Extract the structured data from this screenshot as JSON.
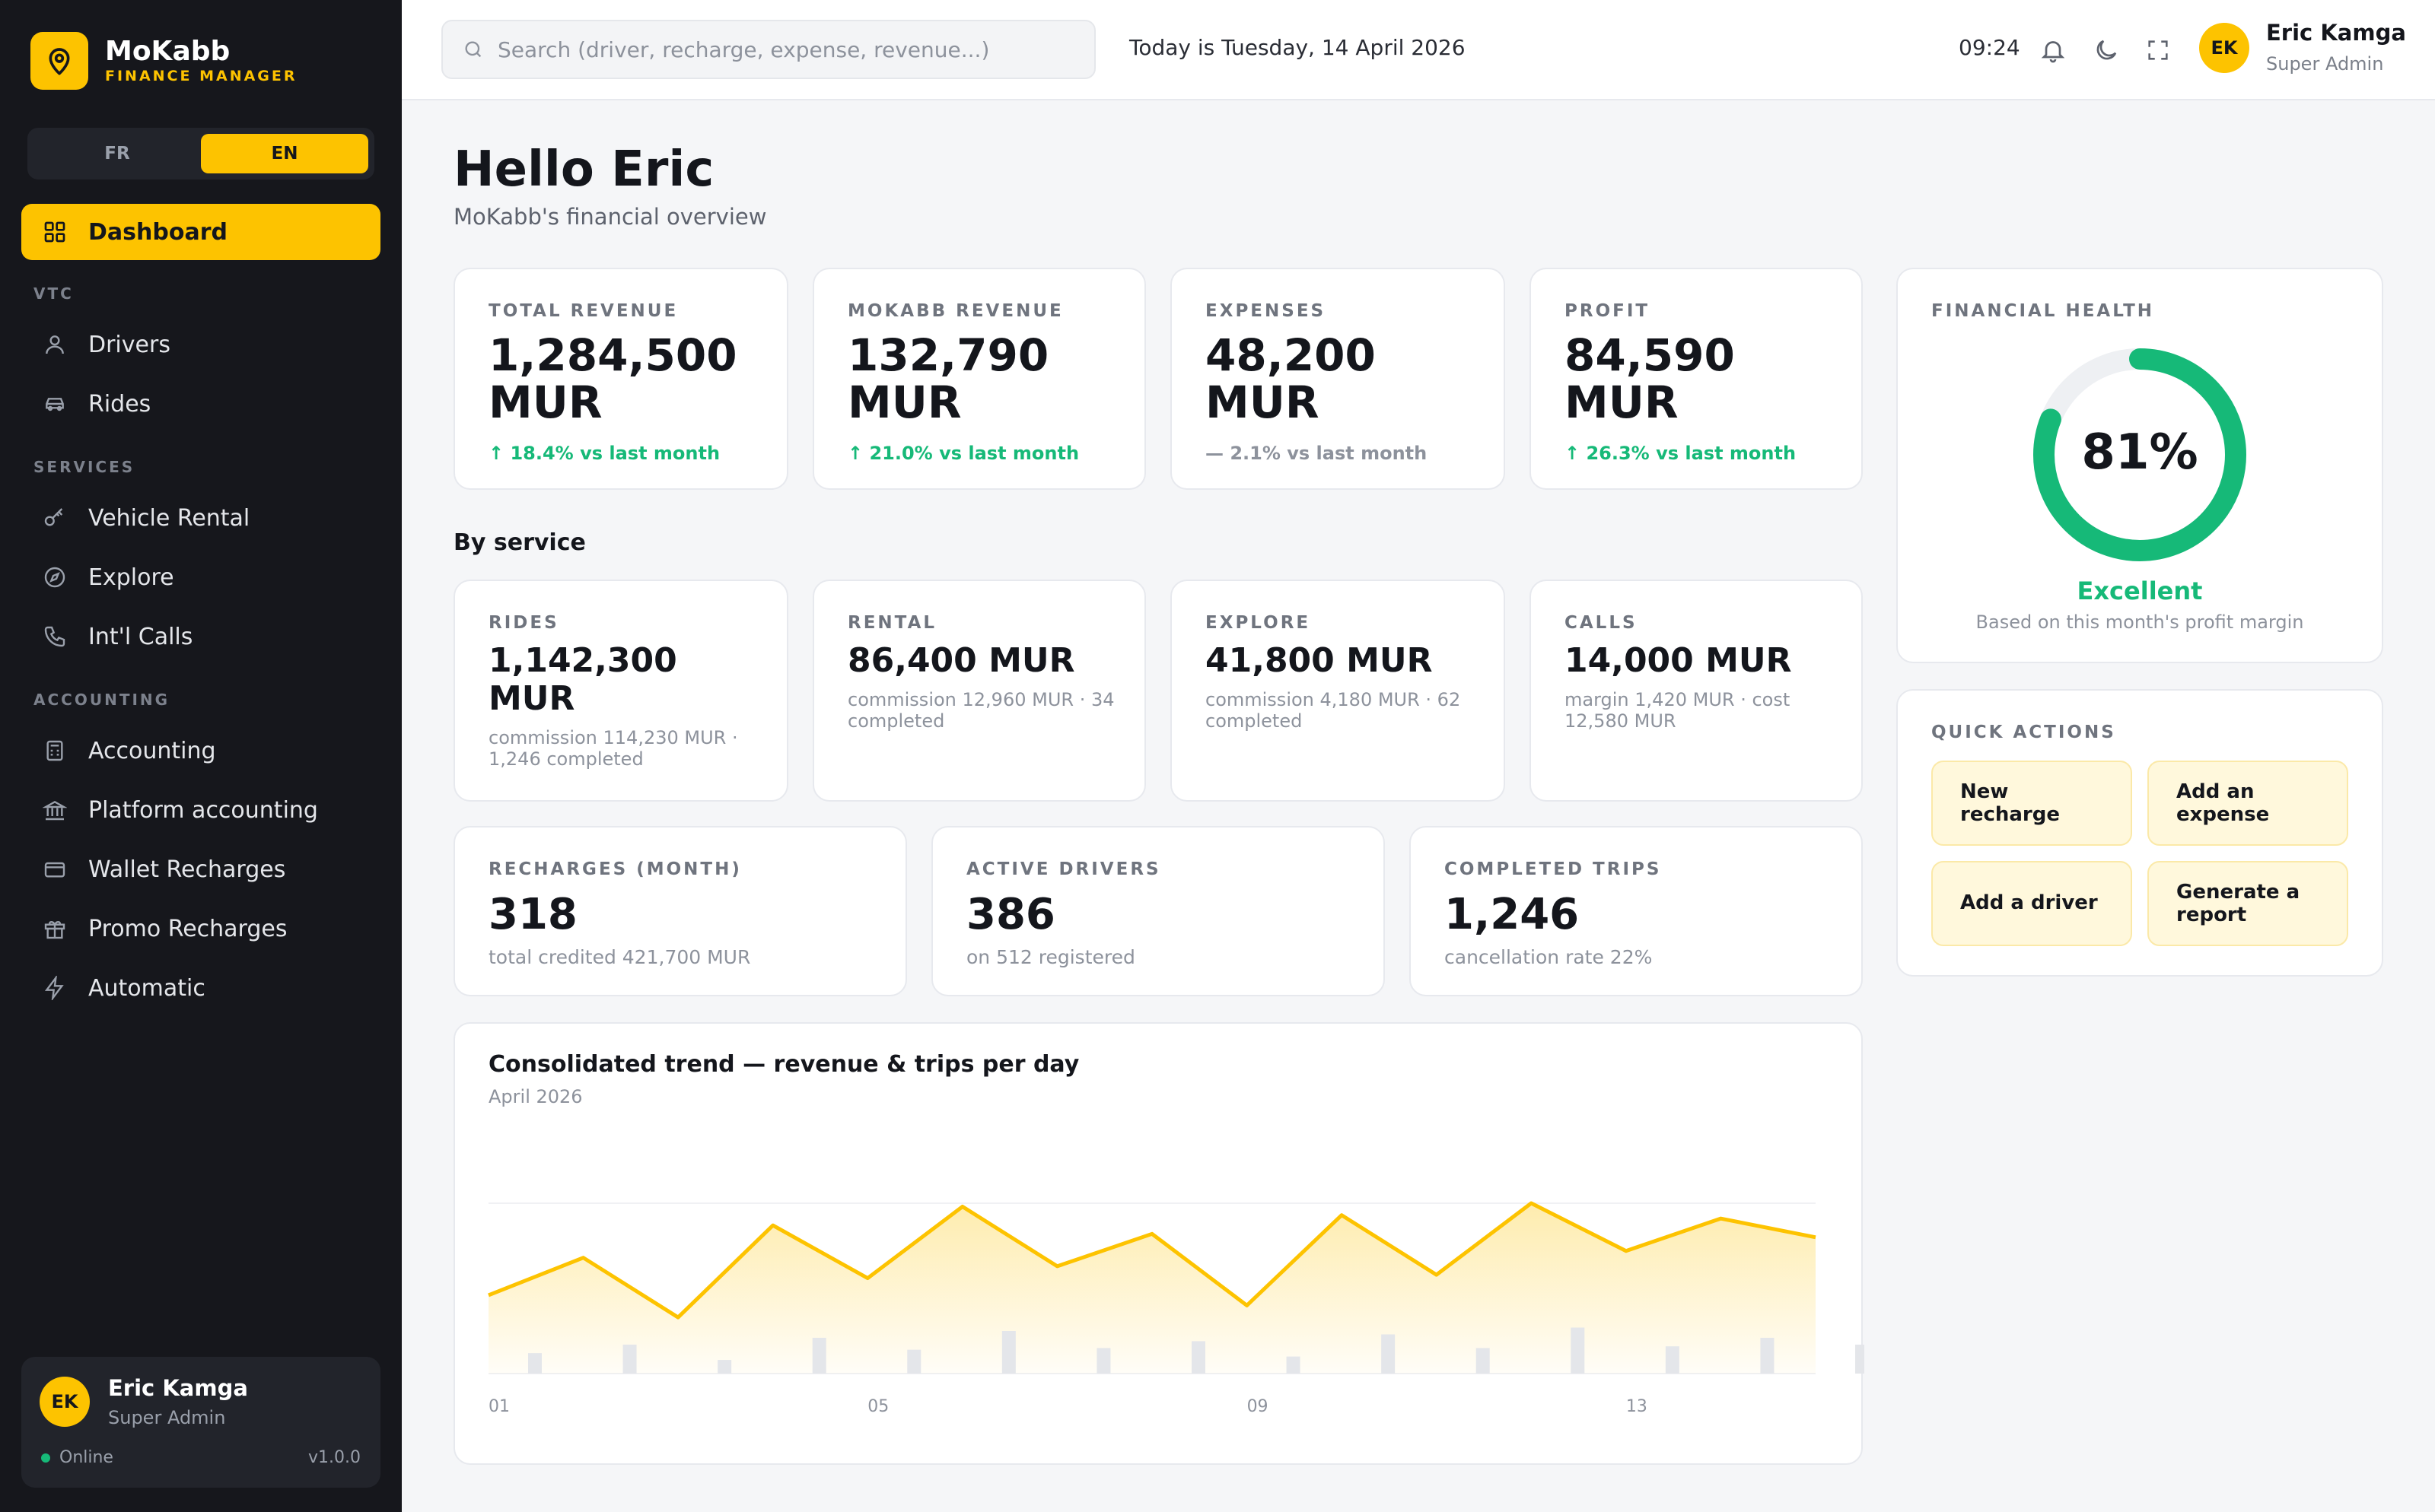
{
  "brand": {
    "name": "MoKabb",
    "subtitle": "FINANCE MANAGER"
  },
  "language": {
    "options": [
      "FR",
      "EN"
    ],
    "selected": "EN"
  },
  "sidebar": {
    "active": {
      "label": "Dashboard",
      "icon": "grid-icon"
    },
    "sections": [
      {
        "title": "VTC",
        "items": [
          {
            "label": "Drivers",
            "icon": "user-icon"
          },
          {
            "label": "Rides",
            "icon": "car-icon"
          }
        ]
      },
      {
        "title": "SERVICES",
        "items": [
          {
            "label": "Vehicle Rental",
            "icon": "key-icon"
          },
          {
            "label": "Explore",
            "icon": "compass-icon"
          },
          {
            "label": "Int'l Calls",
            "icon": "phone-icon"
          }
        ]
      },
      {
        "title": "ACCOUNTING",
        "items": [
          {
            "label": "Accounting",
            "icon": "calculator-icon"
          },
          {
            "label": "Platform accounting",
            "icon": "bank-icon"
          },
          {
            "label": "Wallet Recharges",
            "icon": "card-icon"
          },
          {
            "label": "Promo Recharges",
            "icon": "gift-icon"
          },
          {
            "label": "Automatic",
            "icon": "bolt-icon"
          }
        ]
      }
    ],
    "user": {
      "initials": "EK",
      "name": "Eric Kamga",
      "role": "Super Admin",
      "status": "Online",
      "version": "v1.0.0"
    }
  },
  "topbar": {
    "search_placeholder": "Search (driver, recharge, expense, revenue...)",
    "date_text": "Today is Tuesday, 14 April 2026",
    "time": "09:24",
    "user": {
      "initials": "EK",
      "name": "Eric Kamga",
      "role": "Super Admin"
    }
  },
  "greeting": {
    "title": "Hello Eric",
    "subtitle": "MoKabb's financial overview"
  },
  "kpis": [
    {
      "label": "TOTAL REVENUE",
      "value": "1,284,500 MUR",
      "trend": "↑ 18.4% vs last month"
    },
    {
      "label": "MOKABB REVENUE",
      "value": "132,790 MUR",
      "trend": "↑ 21.0% vs last month"
    },
    {
      "label": "EXPENSES",
      "value": "48,200 MUR",
      "trend": "— 2.1% vs last month"
    },
    {
      "label": "PROFIT",
      "value": "84,590 MUR",
      "trend": "↑ 26.3% vs last month"
    }
  ],
  "by_service": {
    "title": "By service",
    "items": [
      {
        "label": "RIDES",
        "value": "1,142,300 MUR",
        "desc": "commission 114,230 MUR · 1,246 completed"
      },
      {
        "label": "RENTAL",
        "value": "86,400 MUR",
        "desc": "commission 12,960 MUR · 34 completed"
      },
      {
        "label": "EXPLORE",
        "value": "41,800 MUR",
        "desc": "commission 4,180 MUR · 62 completed"
      },
      {
        "label": "CALLS",
        "value": "14,000 MUR",
        "desc": "margin 1,420 MUR · cost 12,580 MUR"
      }
    ]
  },
  "stats": [
    {
      "label": "RECHARGES (MONTH)",
      "value": "318",
      "desc": "total credited 421,700 MUR"
    },
    {
      "label": "ACTIVE DRIVERS",
      "value": "386",
      "desc": "on 512 registered"
    },
    {
      "label": "COMPLETED TRIPS",
      "value": "1,246",
      "desc": "cancellation rate 22%"
    }
  ],
  "health": {
    "label": "FINANCIAL HEALTH",
    "percent": 81,
    "percent_text": "81%",
    "status": "Excellent",
    "note": "Based on this month's profit margin"
  },
  "quick_actions": {
    "label": "QUICK ACTIONS",
    "buttons": [
      "New recharge",
      "Add an expense",
      "Add a driver",
      "Generate a report"
    ]
  },
  "colors": {
    "accent": "#fdc300",
    "success": "#16b978",
    "sidebar": "#16171c"
  },
  "chart_data": {
    "type": "line",
    "title": "Consolidated trend — revenue & trips per day",
    "subtitle": "April 2026",
    "x": [
      1,
      2,
      3,
      4,
      5,
      6,
      7,
      8,
      9,
      10,
      11,
      12,
      13,
      14,
      15
    ],
    "x_tick_labels": [
      "01",
      "05",
      "09",
      "13"
    ],
    "x_ticks": [
      1,
      5,
      9,
      13
    ],
    "series": [
      {
        "kind": "line",
        "values": [
          0.46,
          0.68,
          0.33,
          0.87,
          0.56,
          0.98,
          0.63,
          0.82,
          0.4,
          0.93,
          0.58,
          1.0,
          0.72,
          0.91,
          0.8
        ]
      },
      {
        "kind": "bar",
        "values": [
          0.12,
          0.17,
          0.08,
          0.21,
          0.14,
          0.25,
          0.15,
          0.19,
          0.1,
          0.23,
          0.15,
          0.27,
          0.16,
          0.21,
          0.17
        ]
      }
    ],
    "grid": true,
    "legend": "none"
  }
}
